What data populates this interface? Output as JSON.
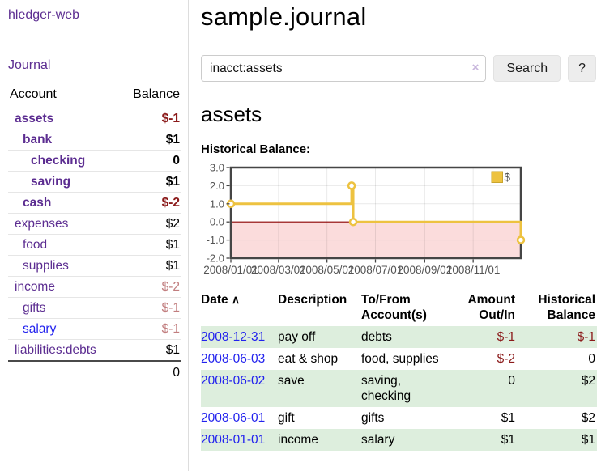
{
  "colors": {
    "purple_link": "#5c2d91",
    "blue_link": "#2222ee",
    "negative_strong": "#8b1a1a",
    "negative_muted": "#c17d7e",
    "row_stripe_green": "#ddeedd",
    "chart_series_gold": "#edc240",
    "chart_negative_fill": "#fbdcdc",
    "chart_zero_line": "#8b0000",
    "chart_border": "#454545"
  },
  "sidebar": {
    "brand": "hledger-web",
    "nav_journal": "Journal",
    "accounts_table": {
      "headers": {
        "account": "Account",
        "balance": "Balance"
      },
      "rows": [
        {
          "name": "assets",
          "indent": 1,
          "bold": true,
          "balance": "$-1",
          "balance_class": "neg"
        },
        {
          "name": "bank",
          "indent": 2,
          "bold": true,
          "balance": "$1",
          "balance_class": "pos"
        },
        {
          "name": "checking",
          "indent": 3,
          "bold": true,
          "balance": "0",
          "balance_class": "pos"
        },
        {
          "name": "saving",
          "indent": 3,
          "bold": true,
          "balance": "$1",
          "balance_class": "pos"
        },
        {
          "name": "cash",
          "indent": 2,
          "bold": true,
          "balance": "$-2",
          "balance_class": "neg"
        },
        {
          "name": "expenses",
          "indent": 1,
          "bold": false,
          "balance": "$2",
          "balance_class": "pos"
        },
        {
          "name": "food",
          "indent": 2,
          "bold": false,
          "balance": "$1",
          "balance_class": "pos"
        },
        {
          "name": "supplies",
          "indent": 2,
          "bold": false,
          "balance": "$1",
          "balance_class": "pos"
        },
        {
          "name": "income",
          "indent": 1,
          "bold": false,
          "balance": "$-2",
          "balance_class": "negmuted"
        },
        {
          "name": "gifts",
          "indent": 2,
          "bold": false,
          "balance": "$-1",
          "balance_class": "negmuted"
        },
        {
          "name": "salary",
          "indent": 2,
          "bold": false,
          "balance": "$-1",
          "balance_class": "negmuted",
          "link_class": "blue"
        },
        {
          "name": "liabilities:debts",
          "indent": 1,
          "bold": false,
          "balance": "$1",
          "balance_class": "pos"
        }
      ],
      "total": "0"
    }
  },
  "main": {
    "title": "sample.journal",
    "search": {
      "value": "inacct:assets",
      "clear_icon": "×",
      "search_button": "Search",
      "help_button": "?"
    },
    "heading": "assets",
    "chart_title": "Historical Balance:"
  },
  "chart_data": {
    "type": "line",
    "title": "Historical Balance",
    "step": true,
    "legend": {
      "label": "$",
      "position": "top-right"
    },
    "x_range": [
      "2008-01-01",
      "2008-12-31"
    ],
    "x_ticks": [
      "2008-01-01",
      "2008-03-01",
      "2008-05-01",
      "2008-07-01",
      "2008-09-01",
      "2008-11-01"
    ],
    "x_tick_labels": [
      "2008/01/01",
      "2008/03/01",
      "2008/05/01",
      "2008/07/01",
      "2008/09/01",
      "2008/11/01"
    ],
    "y_ticks": [
      3.0,
      2.0,
      1.0,
      0.0,
      -1.0,
      -2.0
    ],
    "y_tick_labels": [
      "3.0",
      "2.0",
      "1.0",
      "0.0",
      "-1.0",
      "-2.0"
    ],
    "ylim": [
      -2.0,
      3.0
    ],
    "grid": true,
    "points": [
      {
        "date": "2008-01-01",
        "balance": 1
      },
      {
        "date": "2008-06-01",
        "balance": 2
      },
      {
        "date": "2008-06-03",
        "balance": 0
      },
      {
        "date": "2008-12-31",
        "balance": -1
      }
    ]
  },
  "register": {
    "headers": [
      {
        "lines": [
          "Date"
        ],
        "sort_icon": "∧"
      },
      {
        "lines": [
          "Description"
        ]
      },
      {
        "lines": [
          "To/From",
          "Account(s)"
        ]
      },
      {
        "lines": [
          "Amount",
          "Out/In"
        ]
      },
      {
        "lines": [
          "Historical",
          "Balance"
        ]
      }
    ],
    "rows": [
      {
        "date": "2008-12-31",
        "description": "pay off",
        "accounts": "debts",
        "amount": "$-1",
        "amount_negative": true,
        "balance": "$-1",
        "balance_negative": true,
        "shaded": true
      },
      {
        "date": "2008-06-03",
        "description": "eat & shop",
        "accounts": "food, supplies",
        "amount": "$-2",
        "amount_negative": true,
        "balance": "0",
        "balance_negative": false,
        "shaded": false
      },
      {
        "date": "2008-06-02",
        "description": "save",
        "accounts": "saving, checking",
        "amount": "0",
        "amount_negative": false,
        "balance": "$2",
        "balance_negative": false,
        "shaded": true
      },
      {
        "date": "2008-06-01",
        "description": "gift",
        "accounts": "gifts",
        "amount": "$1",
        "amount_negative": false,
        "balance": "$2",
        "balance_negative": false,
        "shaded": false
      },
      {
        "date": "2008-01-01",
        "description": "income",
        "accounts": "salary",
        "amount": "$1",
        "amount_negative": false,
        "balance": "$1",
        "balance_negative": false,
        "shaded": true
      }
    ]
  }
}
